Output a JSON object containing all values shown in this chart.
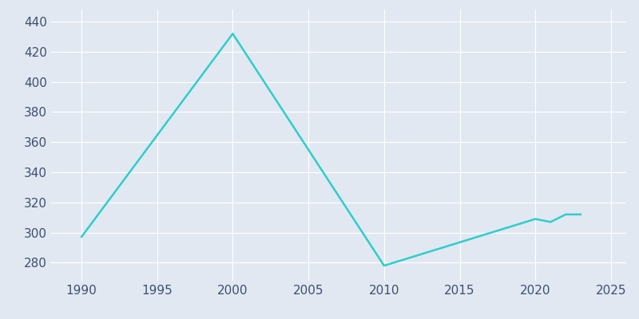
{
  "years": [
    1990,
    2000,
    2010,
    2020,
    2021,
    2022,
    2023
  ],
  "population": [
    297,
    432,
    278,
    309,
    307,
    312,
    312
  ],
  "line_color": "#2ECECA",
  "bg_color": "#E2E8F2",
  "plot_bg_color": "#E2E8F2",
  "grid_color": "#FFFFFF",
  "tick_color": "#3D4F6E",
  "xlim": [
    1988,
    2026
  ],
  "ylim": [
    268,
    448
  ],
  "yticks": [
    280,
    300,
    320,
    340,
    360,
    380,
    400,
    420,
    440
  ],
  "xticks": [
    1990,
    1995,
    2000,
    2005,
    2010,
    2015,
    2020,
    2025
  ],
  "linewidth": 1.8,
  "figsize": [
    8.0,
    4.0
  ],
  "dpi": 100
}
